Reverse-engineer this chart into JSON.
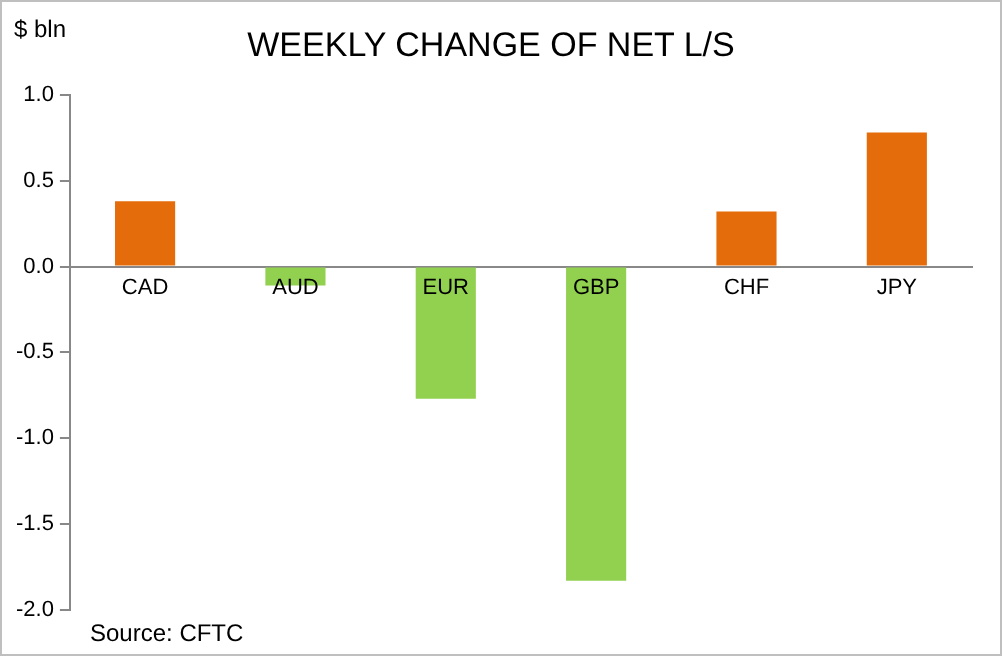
{
  "chart_data": {
    "type": "bar",
    "title": "WEEKLY CHANGE OF NET L/S",
    "ylabel": "$ bln",
    "categories": [
      "CAD",
      "AUD",
      "EUR",
      "GBP",
      "CHF",
      "JPY"
    ],
    "values": [
      0.38,
      -0.11,
      -0.77,
      -1.83,
      0.32,
      0.78
    ],
    "colors": [
      "#e46c0a",
      "#92d050",
      "#92d050",
      "#92d050",
      "#e46c0a",
      "#e46c0a"
    ],
    "ylim": [
      -2.0,
      1.0
    ],
    "yticks": [
      {
        "value": -2,
        "label": "-2.0"
      },
      {
        "value": -1.5,
        "label": "-1.5"
      },
      {
        "value": -1,
        "label": "-1.0"
      },
      {
        "value": -0.5,
        "label": "-0.5"
      },
      {
        "value": 0,
        "label": "0.0"
      },
      {
        "value": 0.5,
        "label": "0.5"
      },
      {
        "value": 1,
        "label": "1.0"
      }
    ],
    "grid": false,
    "legend": false,
    "annotations": [
      "Source: CFTC"
    ]
  }
}
